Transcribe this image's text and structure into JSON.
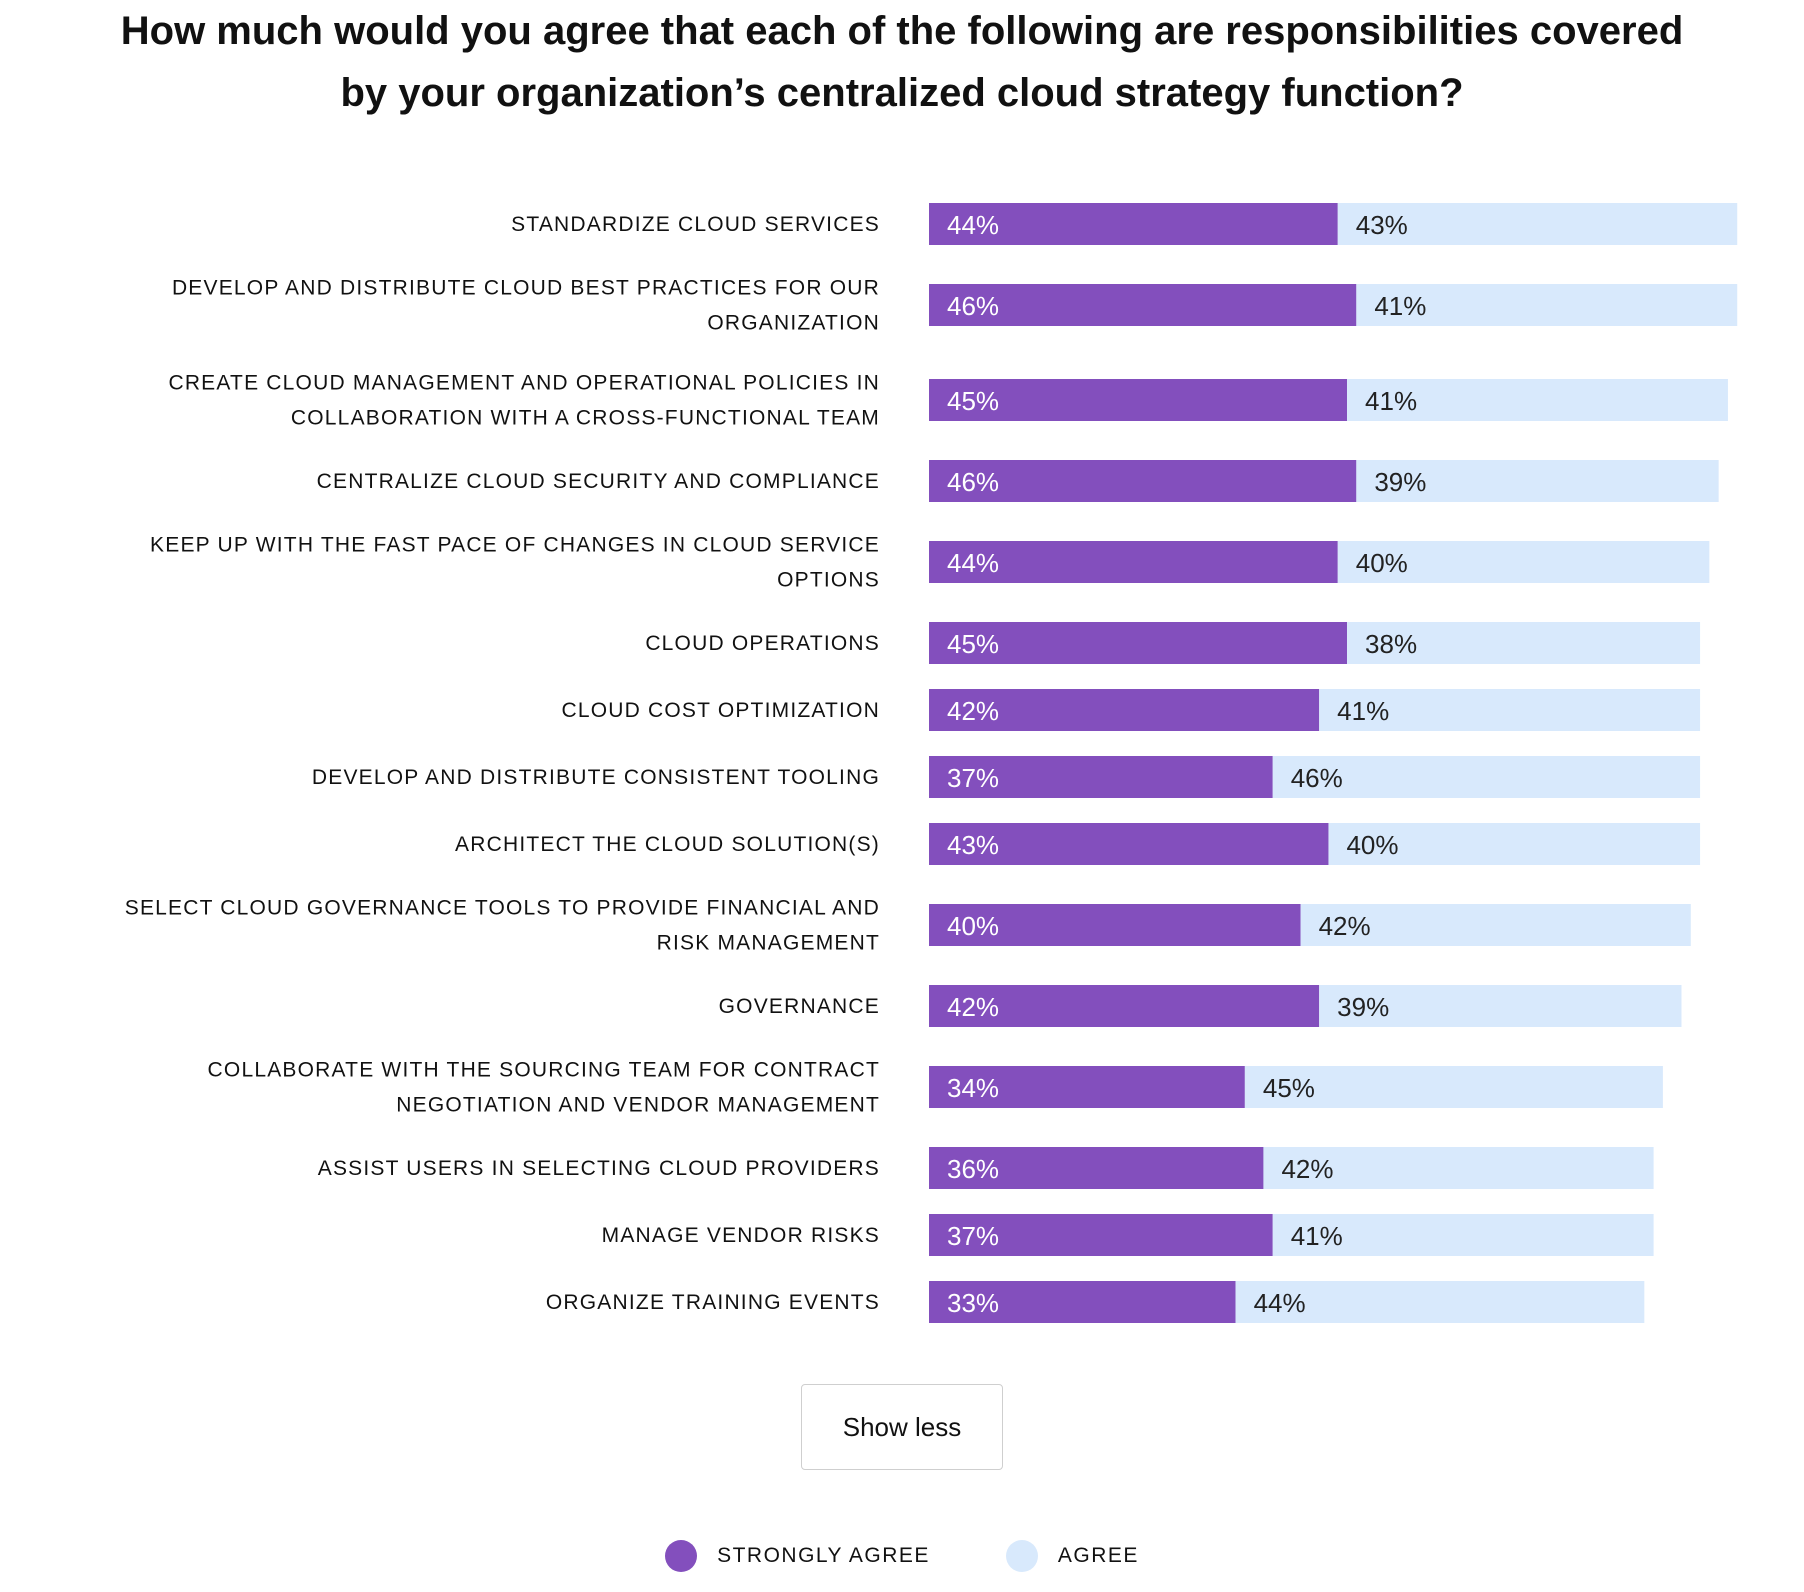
{
  "title": "How much would you agree that each of the following are responsibilities covered by your organization’s centralized cloud strategy function?",
  "show_less_label": "Show less",
  "colors": {
    "strongly_agree": "#834fbd",
    "agree": "#d8e9fc"
  },
  "legend": [
    {
      "label": "STRONGLY AGREE",
      "color": "#834fbd"
    },
    {
      "label": "AGREE",
      "color": "#d8e9fc"
    }
  ],
  "chart_data": {
    "type": "bar",
    "orientation": "horizontal",
    "stacked": true,
    "grid": false,
    "legend_position": "bottom",
    "categories": [
      [
        "STANDARDIZE CLOUD SERVICES"
      ],
      [
        "DEVELOP AND DISTRIBUTE CLOUD BEST PRACTICES FOR OUR",
        "ORGANIZATION"
      ],
      [
        "CREATE CLOUD MANAGEMENT AND OPERATIONAL POLICIES IN",
        "COLLABORATION WITH A CROSS-FUNCTIONAL TEAM"
      ],
      [
        "CENTRALIZE CLOUD SECURITY AND COMPLIANCE"
      ],
      [
        "KEEP UP WITH THE FAST PACE OF CHANGES IN CLOUD SERVICE",
        "OPTIONS"
      ],
      [
        "CLOUD OPERATIONS"
      ],
      [
        "CLOUD COST OPTIMIZATION"
      ],
      [
        "DEVELOP AND DISTRIBUTE CONSISTENT TOOLING"
      ],
      [
        "ARCHITECT THE CLOUD SOLUTION(S)"
      ],
      [
        "SELECT CLOUD GOVERNANCE TOOLS TO PROVIDE FINANCIAL AND",
        "RISK MANAGEMENT"
      ],
      [
        "GOVERNANCE"
      ],
      [
        "COLLABORATE WITH THE SOURCING TEAM FOR CONTRACT",
        "NEGOTIATION AND VENDOR MANAGEMENT"
      ],
      [
        "ASSIST USERS IN SELECTING CLOUD PROVIDERS"
      ],
      [
        "MANAGE VENDOR RISKS"
      ],
      [
        "ORGANIZE TRAINING EVENTS"
      ]
    ],
    "series": [
      {
        "name": "STRONGLY AGREE",
        "values": [
          44,
          46,
          45,
          46,
          44,
          45,
          42,
          37,
          43,
          40,
          42,
          34,
          36,
          37,
          33
        ]
      },
      {
        "name": "AGREE",
        "values": [
          43,
          41,
          41,
          39,
          40,
          38,
          41,
          46,
          40,
          42,
          39,
          45,
          42,
          41,
          44
        ]
      }
    ],
    "value_suffix": "%"
  }
}
